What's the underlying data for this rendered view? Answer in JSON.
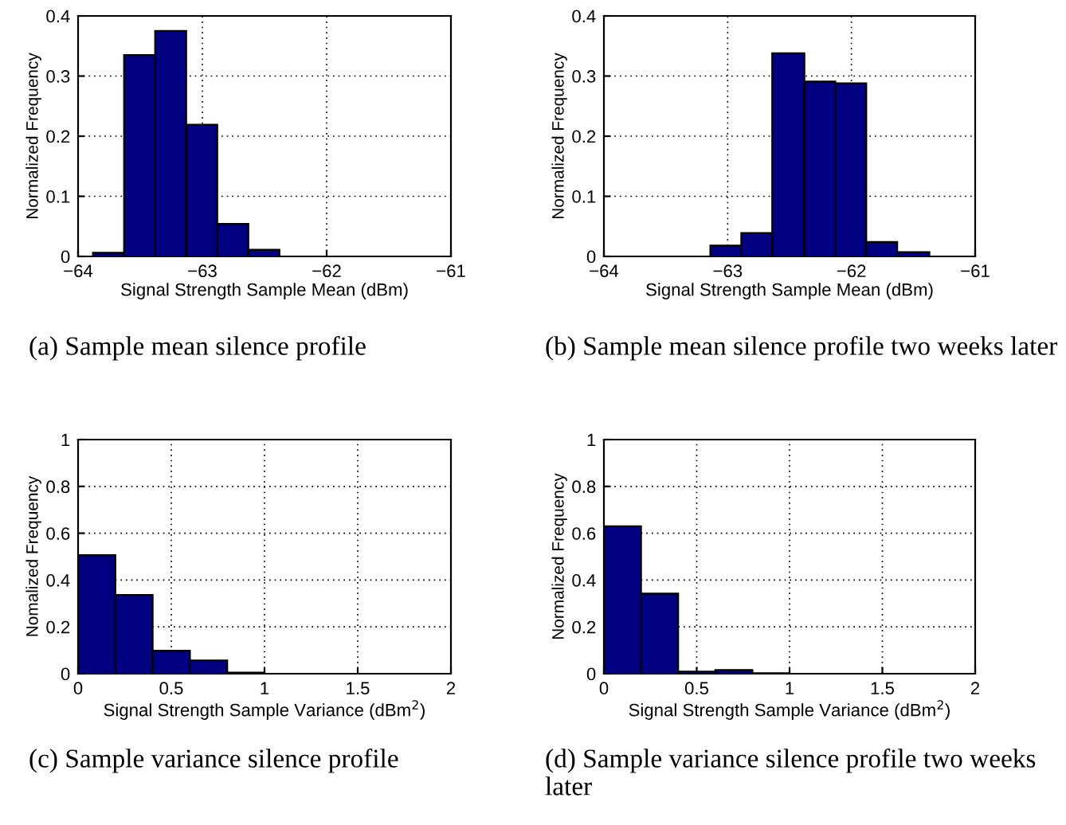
{
  "chart_data": [
    {
      "type": "histogram",
      "xlabel": "Signal Strength Sample Mean (dBm)",
      "ylabel": "Normalized Frequency",
      "bins": [
        -63.88,
        -63.63,
        -63.38,
        -63.13,
        -62.88,
        -62.63,
        -62.38
      ],
      "values": [
        0.006,
        0.335,
        0.375,
        0.219,
        0.054,
        0.011
      ],
      "color": "#000080",
      "xlim": [
        -64,
        -61
      ],
      "xticks": [
        {
          "value": -64,
          "label": "−64"
        },
        {
          "value": -63,
          "label": "−63"
        },
        {
          "value": -62,
          "label": "−62"
        },
        {
          "value": -61,
          "label": "−61"
        }
      ],
      "ylim": [
        0,
        0.4
      ],
      "yticks": [
        0,
        0.1,
        0.2,
        0.3,
        0.4
      ],
      "grid": true,
      "annotations": [
        "(a) Sample mean silence profile"
      ]
    },
    {
      "type": "histogram",
      "xlabel": "Signal Strength Sample Mean (dBm)",
      "ylabel": "Normalized Frequency",
      "bins": [
        -63.14,
        -62.89,
        -62.64,
        -62.38,
        -62.13,
        -61.88,
        -61.63,
        -61.37
      ],
      "values": [
        0.018,
        0.039,
        0.338,
        0.291,
        0.288,
        0.024,
        0.007
      ],
      "color": "#000080",
      "xlim": [
        -64,
        -61
      ],
      "xticks": [
        {
          "value": -64,
          "label": "−64"
        },
        {
          "value": -63,
          "label": "−63"
        },
        {
          "value": -62,
          "label": "−62"
        },
        {
          "value": -61,
          "label": "−61"
        }
      ],
      "ylim": [
        0,
        0.4
      ],
      "yticks": [
        0,
        0.1,
        0.2,
        0.3,
        0.4
      ],
      "grid": true,
      "annotations": [
        "(b) Sample mean silence profile two weeks later"
      ]
    },
    {
      "type": "histogram",
      "xlabel": "Signal Strength Sample Variance (dBm$^{2}$)",
      "ylabel": "Nomalized Frequency",
      "bins": [
        0,
        0.2,
        0.4,
        0.6,
        0.8,
        1.0
      ],
      "values": [
        0.506,
        0.336,
        0.098,
        0.057,
        0.005
      ],
      "color": "#000080",
      "xlim": [
        0,
        2
      ],
      "xticks": [
        0,
        0.5,
        1,
        1.5,
        2
      ],
      "ylim": [
        0,
        1
      ],
      "yticks": [
        0,
        0.2,
        0.4,
        0.6,
        0.8,
        1
      ],
      "grid": true,
      "annotations": [
        "(c) Sample variance silence profile"
      ]
    },
    {
      "type": "histogram",
      "xlabel": "Signal Strength Sample Variance (dBm$^{2}$)",
      "ylabel": "Normalized Frequency",
      "bins": [
        0,
        0.2,
        0.4,
        0.6,
        0.8,
        1.0
      ],
      "values": [
        0.63,
        0.342,
        0.009,
        0.016,
        0.002
      ],
      "color": "#000080",
      "xlim": [
        0,
        2
      ],
      "xticks": [
        0,
        0.5,
        1,
        1.5,
        2
      ],
      "ylim": [
        0,
        1
      ],
      "yticks": [
        0,
        0.2,
        0.4,
        0.6,
        0.8,
        1
      ],
      "grid": true,
      "annotations": [
        "(d) Sample variance silence profile two weeks later"
      ]
    }
  ]
}
